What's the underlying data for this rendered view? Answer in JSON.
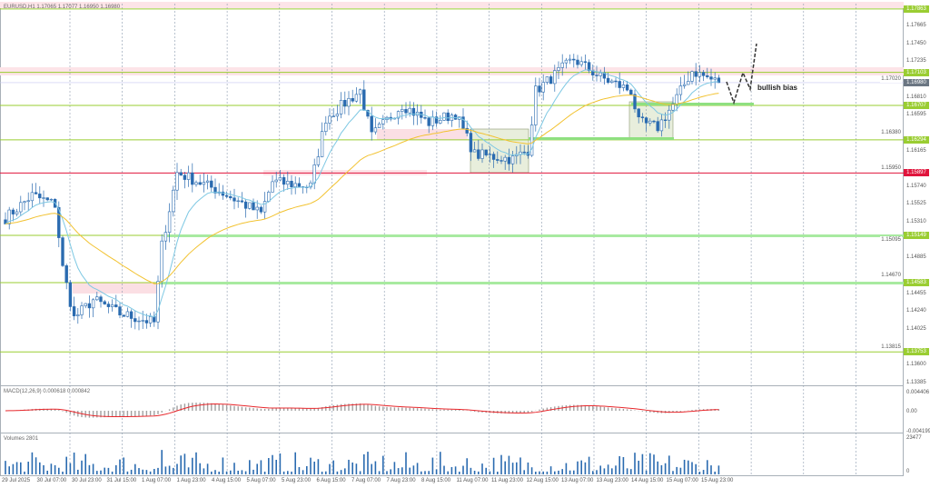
{
  "header": {
    "symbol_line": "EURUSD,H1  1.17065 1.17077 1.16950 1.16980"
  },
  "annotation": {
    "bias_label": "bullish bias"
  },
  "price_axis": {
    "ticks": [
      "1.17665",
      "1.17450",
      "1.17235",
      "1.17020",
      "1.16810",
      "1.16595",
      "1.16380",
      "1.16165",
      "1.15950",
      "1.15740",
      "1.15525",
      "1.15310",
      "1.15095",
      "1.14885",
      "1.14670",
      "1.14455",
      "1.14240",
      "1.14025",
      "1.13815",
      "1.13600",
      "1.13385"
    ],
    "levels": [
      {
        "price": "1.17863",
        "color": "#9acd32"
      },
      {
        "price": "1.17103",
        "color": "#9acd32"
      },
      {
        "price": "1.16707",
        "color": "#9acd32"
      },
      {
        "price": "1.16294",
        "color": "#9acd32"
      },
      {
        "price": "1.15897",
        "color": "#e0143c"
      },
      {
        "price": "1.15149",
        "color": "#9acd32"
      },
      {
        "price": "1.14583",
        "color": "#9acd32"
      },
      {
        "price": "1.13753",
        "color": "#9acd32"
      }
    ],
    "current_price": {
      "price": "1.16980",
      "color": "#6b7682"
    }
  },
  "macd": {
    "label": "MACD(12,26,9) 0.000618 0.000842",
    "ticks": [
      "0.004406",
      "0.00",
      "-0.004199"
    ],
    "signal_color": "#e8282c"
  },
  "volume": {
    "label": "Volumes 2801",
    "ticks": [
      "23477",
      "0"
    ]
  },
  "time_axis": [
    "29 Jul 2025",
    "30 Jul 07:00",
    "30 Jul 23:00",
    "31 Jul 15:00",
    "1 Aug 07:00",
    "1 Aug 23:00",
    "4 Aug 15:00",
    "5 Aug 07:00",
    "5 Aug 23:00",
    "6 Aug 15:00",
    "7 Aug 07:00",
    "7 Aug 23:00",
    "8 Aug 15:00",
    "11 Aug 07:00",
    "11 Aug 23:00",
    "12 Aug 15:00",
    "13 Aug 07:00",
    "13 Aug 23:00",
    "14 Aug 15:00",
    "15 Aug 07:00",
    "15 Aug 23:00"
  ],
  "price_path": {
    "bars": [
      0,
      7,
      13,
      15,
      18,
      23,
      30,
      39,
      41,
      45,
      56,
      67,
      70,
      80,
      84,
      93,
      96,
      104,
      111,
      118,
      123,
      133,
      137,
      139,
      149,
      156,
      164,
      166,
      171,
      175,
      180,
      187
    ],
    "close": [
      1.15356,
      1.15628,
      1.1552,
      1.14757,
      1.14158,
      1.14376,
      1.14212,
      1.14104,
      1.15029,
      1.15901,
      1.15683,
      1.15411,
      1.15792,
      1.15737,
      1.16554,
      1.16881,
      1.16336,
      1.16718,
      1.165,
      1.16609,
      1.16119,
      1.16064,
      1.16173,
      1.16881,
      1.17262,
      1.17044,
      1.16881,
      1.165,
      1.16445,
      1.16718,
      1.1712,
      1.1698
    ]
  },
  "colors": {
    "candle": "#2a6bb0",
    "fast_ma": "#7ec8e3",
    "slow_ma": "#f2c230",
    "grid": "#8a9aae"
  }
}
